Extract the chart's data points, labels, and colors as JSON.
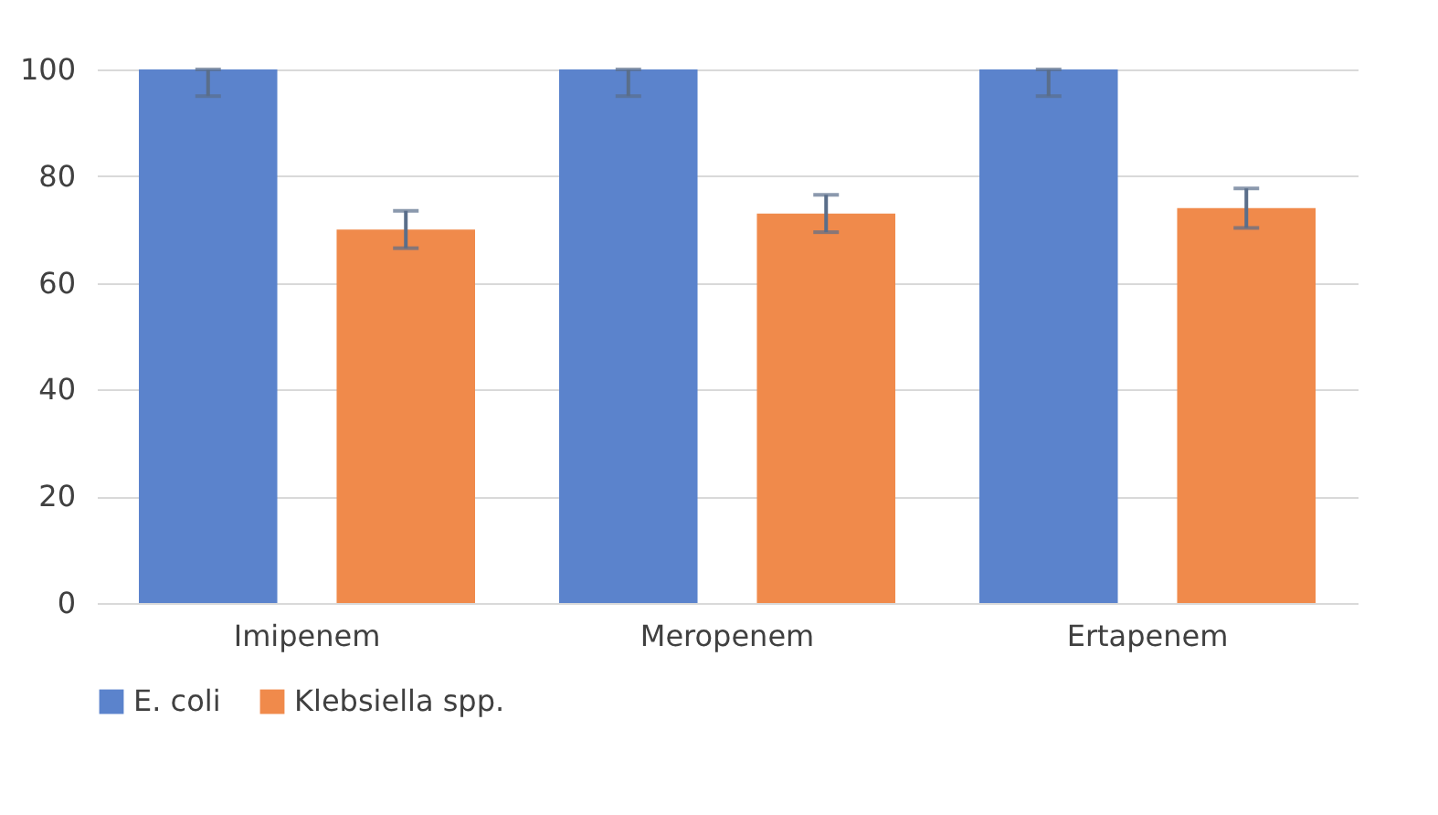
{
  "chart_data": {
    "type": "bar",
    "categories": [
      "Imipenem",
      "Meropenem",
      "Ertapenem"
    ],
    "series": [
      {
        "name": "E. coli",
        "color": "#5b83cc",
        "values": [
          100,
          100,
          100
        ],
        "errors": [
          [
            95,
            100
          ],
          [
            95,
            100
          ],
          [
            95,
            100
          ]
        ]
      },
      {
        "name": "Klebsiella spp.",
        "color": "#f08a4b",
        "values": [
          70,
          73,
          74
        ],
        "errors": [
          3.5,
          3.5,
          3.7
        ]
      }
    ],
    "ylim": [
      0,
      100
    ],
    "yticks": [
      0,
      20,
      40,
      60,
      80,
      100
    ],
    "grid": "y",
    "legend": "bottom"
  }
}
